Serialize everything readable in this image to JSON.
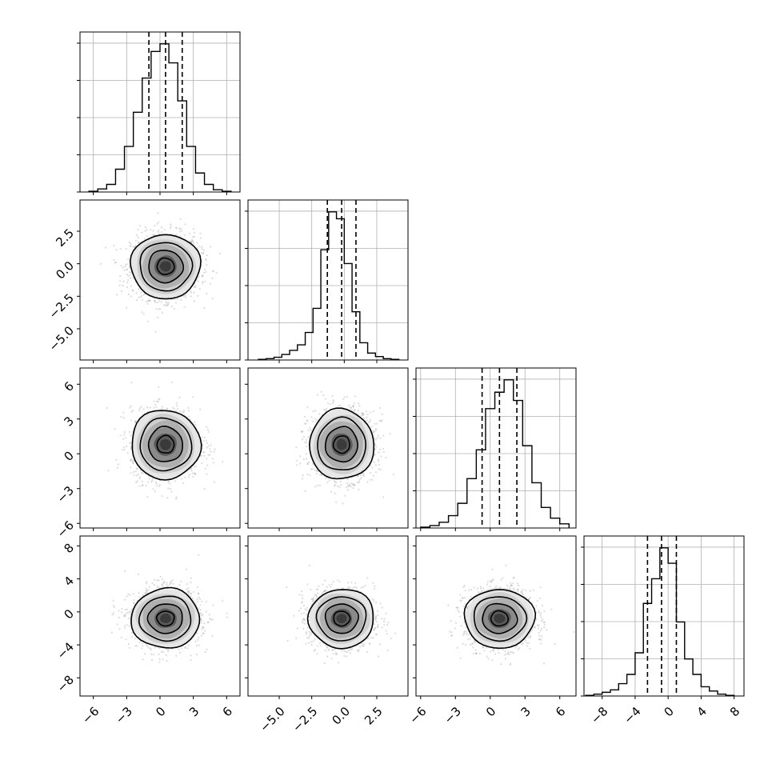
{
  "chart_data": {
    "type": "corner",
    "dimensions": 4,
    "grid": true,
    "dashed_quantiles_note": "vertical dashed lines mark 16th, 50th and 84th percentiles in each 1D histogram",
    "axes": [
      {
        "ticks": [
          -6,
          -3,
          0,
          3,
          6
        ],
        "tick_labels": [
          "−6",
          "−3",
          "0",
          "3",
          "6"
        ],
        "range": [
          -7.2,
          7.2
        ]
      },
      {
        "ticks": [
          -5.0,
          -2.5,
          0.0,
          2.5
        ],
        "tick_labels": [
          "−5.0",
          "−2.5",
          "0.0",
          "2.5"
        ],
        "range": [
          -7.4,
          4.9
        ]
      },
      {
        "ticks": [
          -6,
          -3,
          0,
          3,
          6
        ],
        "tick_labels": [
          "−6",
          "−3",
          "0",
          "3",
          "6"
        ],
        "range": [
          -6.4,
          7.4
        ]
      },
      {
        "ticks": [
          -8,
          -4,
          0,
          4,
          8
        ],
        "tick_labels": [
          "−8",
          "−4",
          "0",
          "4",
          "8"
        ],
        "range": [
          -10.2,
          9.2
        ]
      }
    ],
    "histograms": [
      {
        "edges": [
          -6.4,
          -5.6,
          -4.8,
          -4.0,
          -3.2,
          -2.4,
          -1.6,
          -0.8,
          0.0,
          0.8,
          1.6,
          2.4,
          3.2,
          4.0,
          4.8,
          5.6,
          6.4
        ],
        "counts": [
          1,
          4,
          10,
          30,
          60,
          105,
          150,
          185,
          195,
          170,
          120,
          60,
          25,
          10,
          3,
          1
        ],
        "quantiles": [
          -1.0,
          0.5,
          2.0
        ]
      },
      {
        "edges": [
          -6.6,
          -6.0,
          -5.4,
          -4.8,
          -4.2,
          -3.6,
          -3.0,
          -2.4,
          -1.8,
          -1.2,
          -0.6,
          0.0,
          0.6,
          1.2,
          1.8,
          2.4,
          3.0,
          3.6,
          4.2
        ],
        "counts": [
          1,
          2,
          4,
          8,
          14,
          22,
          40,
          75,
          160,
          215,
          205,
          140,
          70,
          25,
          10,
          5,
          2,
          1
        ],
        "quantiles": [
          -1.3,
          -0.2,
          0.9
        ]
      },
      {
        "edges": [
          -6.0,
          -5.2,
          -4.4,
          -3.6,
          -2.8,
          -2.0,
          -1.2,
          -0.4,
          0.4,
          1.2,
          2.0,
          2.8,
          3.6,
          4.4,
          5.2,
          6.0,
          6.8
        ],
        "counts": [
          1,
          3,
          7,
          15,
          30,
          60,
          95,
          145,
          165,
          180,
          155,
          100,
          55,
          25,
          12,
          5
        ],
        "quantiles": [
          -0.7,
          0.8,
          2.3
        ]
      },
      {
        "edges": [
          -10.0,
          -9.0,
          -8.0,
          -7.0,
          -6.0,
          -5.0,
          -4.0,
          -3.0,
          -2.0,
          -1.0,
          0.0,
          1.0,
          2.0,
          3.0,
          4.0,
          5.0,
          6.0,
          7.0,
          8.0
        ],
        "counts": [
          1,
          3,
          6,
          10,
          20,
          35,
          70,
          150,
          190,
          240,
          215,
          120,
          60,
          35,
          15,
          8,
          3,
          1
        ],
        "quantiles": [
          -2.5,
          -0.8,
          1.0
        ]
      }
    ],
    "pairs": [
      {
        "x": 0,
        "y": 1,
        "center": [
          0.5,
          -0.2
        ],
        "spread": [
          1.55,
          1.25
        ]
      },
      {
        "x": 0,
        "y": 2,
        "center": [
          0.5,
          0.8
        ],
        "spread": [
          1.55,
          1.5
        ]
      },
      {
        "x": 1,
        "y": 2,
        "center": [
          -0.2,
          0.8
        ],
        "spread": [
          1.25,
          1.5
        ]
      },
      {
        "x": 0,
        "y": 3,
        "center": [
          0.5,
          -0.8
        ],
        "spread": [
          1.55,
          1.8
        ]
      },
      {
        "x": 1,
        "y": 3,
        "center": [
          -0.2,
          -0.8
        ],
        "spread": [
          1.25,
          1.8
        ]
      },
      {
        "x": 2,
        "y": 3,
        "center": [
          0.8,
          -0.8
        ],
        "spread": [
          1.5,
          1.8
        ]
      }
    ],
    "contour_levels_sigma": [
      0.5,
      1.0,
      1.5,
      2.0
    ],
    "colors": {
      "line": "#000000",
      "scatter": "#9a9a9a",
      "grid": "#b0b0b0",
      "density_dark": "#3a3a3a"
    }
  }
}
